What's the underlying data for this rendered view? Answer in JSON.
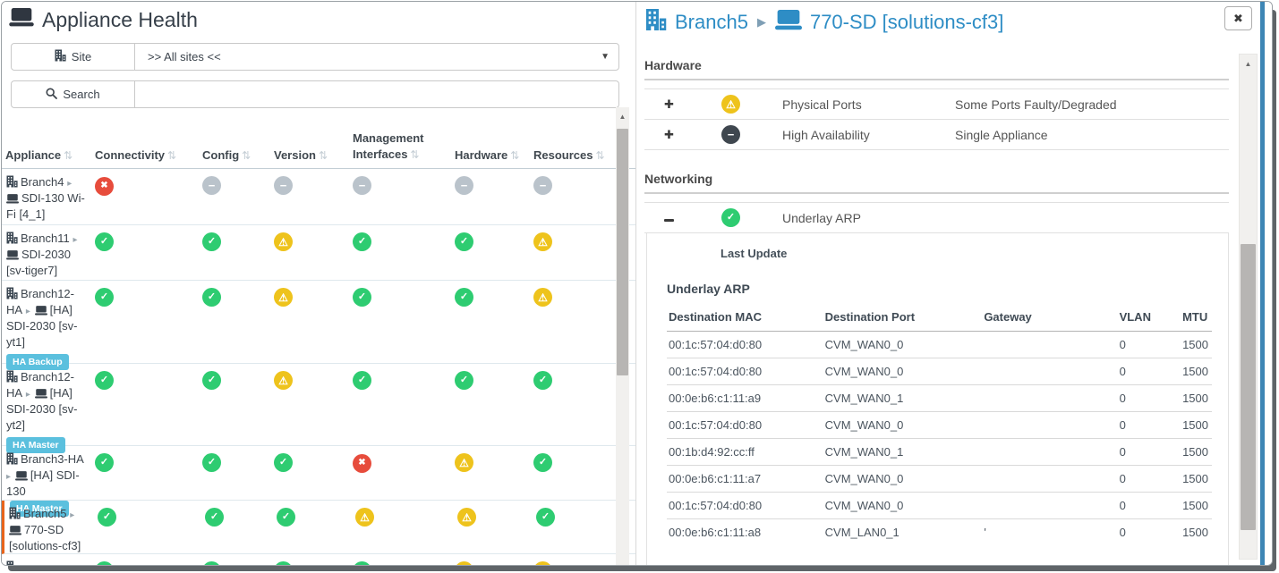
{
  "left_panel": {
    "title": "Appliance Health",
    "filters": {
      "site_label": "Site",
      "site_value": ">> All sites <<",
      "search_label": "Search",
      "search_placeholder": ""
    },
    "table": {
      "columns": [
        "Appliance",
        "Connectivity",
        "Config",
        "Version",
        "Management Interfaces",
        "Hardware",
        "Resources"
      ],
      "rows": [
        {
          "site": "Branch4",
          "device": "SDI-130 Wi-Fi [4_1]",
          "badge": "",
          "badge_inline": false,
          "selected": false,
          "partial": false,
          "statuses": [
            "error",
            "none",
            "none",
            "none",
            "none",
            "none"
          ]
        },
        {
          "site": "Branch11",
          "device": "SDI-2030 [sv-tiger7]",
          "badge": "",
          "badge_inline": false,
          "selected": false,
          "partial": false,
          "statuses": [
            "ok",
            "ok",
            "warn",
            "ok",
            "ok",
            "warn"
          ]
        },
        {
          "site": "Branch12-HA",
          "device": "[HA] SDI-2030 [sv-yt1]",
          "badge": "HA Backup",
          "badge_inline": false,
          "selected": false,
          "partial": false,
          "statuses": [
            "ok",
            "ok",
            "warn",
            "ok",
            "ok",
            "warn"
          ]
        },
        {
          "site": "Branch12-HA",
          "device": "[HA] SDI-2030 [sv-yt2]",
          "badge": "HA Master",
          "badge_inline": false,
          "selected": false,
          "partial": false,
          "statuses": [
            "ok",
            "ok",
            "warn",
            "ok",
            "ok",
            "ok"
          ]
        },
        {
          "site": "Branch3-HA",
          "device": "[HA] SDI-130",
          "badge": "HA Master",
          "badge_inline": true,
          "selected": false,
          "partial": false,
          "statuses": [
            "ok",
            "ok",
            "ok",
            "error",
            "warn",
            "ok"
          ]
        },
        {
          "site": "Branch5",
          "device": "770-SD [solutions-cf3]",
          "badge": "",
          "badge_inline": false,
          "selected": true,
          "partial": false,
          "statuses": [
            "ok",
            "ok",
            "ok",
            "warn",
            "warn",
            "ok"
          ]
        },
        {
          "site": "",
          "device": "",
          "badge": "",
          "badge_inline": false,
          "selected": false,
          "partial": true,
          "statuses": [
            "ok",
            "ok",
            "ok",
            "ok",
            "warn",
            "warn"
          ]
        }
      ]
    }
  },
  "right_panel": {
    "breadcrumb": {
      "site": "Branch5",
      "device": "770-SD [solutions-cf3]"
    },
    "sections": [
      {
        "title": "Hardware",
        "rows": [
          {
            "expand": "plus",
            "status": "warn",
            "name": "Physical Ports",
            "detail": "Some Ports Faulty/Degraded"
          },
          {
            "expand": "plus",
            "status": "dark",
            "name": "High Availability",
            "detail": "Single Appliance"
          }
        ]
      },
      {
        "title": "Networking",
        "rows": [
          {
            "expand": "minus",
            "status": "ok",
            "name": "Underlay ARP",
            "detail": ""
          }
        ]
      }
    ],
    "underlay_arp": {
      "last_update_label": "Last Update",
      "last_update_value": "",
      "table_title": "Underlay ARP",
      "columns": [
        "Destination MAC",
        "Destination Port",
        "Gateway",
        "VLAN",
        "MTU"
      ],
      "rows": [
        [
          "00:1c:57:04:d0:80",
          "CVM_WAN0_0",
          "",
          "0",
          "1500"
        ],
        [
          "00:1c:57:04:d0:80",
          "CVM_WAN0_0",
          "",
          "0",
          "1500"
        ],
        [
          "00:0e:b6:c1:11:a9",
          "CVM_WAN0_1",
          "",
          "0",
          "1500"
        ],
        [
          "00:1c:57:04:d0:80",
          "CVM_WAN0_0",
          "",
          "0",
          "1500"
        ],
        [
          "00:1b:d4:92:cc:ff",
          "CVM_WAN0_1",
          "",
          "0",
          "1500"
        ],
        [
          "00:0e:b6:c1:11:a7",
          "CVM_WAN0_0",
          "",
          "0",
          "1500"
        ],
        [
          "00:1c:57:04:d0:80",
          "CVM_WAN0_0",
          "",
          "0",
          "1500"
        ],
        [
          "00:0e:b6:c1:11:a8",
          "CVM_LAN0_1",
          "'",
          "0",
          "1500"
        ]
      ]
    }
  },
  "icons": {
    "caret_down": "▼",
    "sort": "⇅",
    "tree_caret": "▸",
    "breadcrumb_chevron": "▶",
    "scroll_up_arrow": "▲",
    "close": "✖",
    "plus": "✚",
    "status": {
      "ok": "✓",
      "warn": "⚠",
      "error": "✖",
      "none": "−",
      "dark": "−"
    }
  },
  "colors": {
    "status_ok": "#2ecc71",
    "status_warn": "#eec31c",
    "status_error": "#e74c3c",
    "status_none": "#bac3cb",
    "status_dark": "#3f474f",
    "link_blue": "#2e8dc5",
    "badge_blue": "#5bc0de",
    "selected_row_border": "#e8641b"
  }
}
